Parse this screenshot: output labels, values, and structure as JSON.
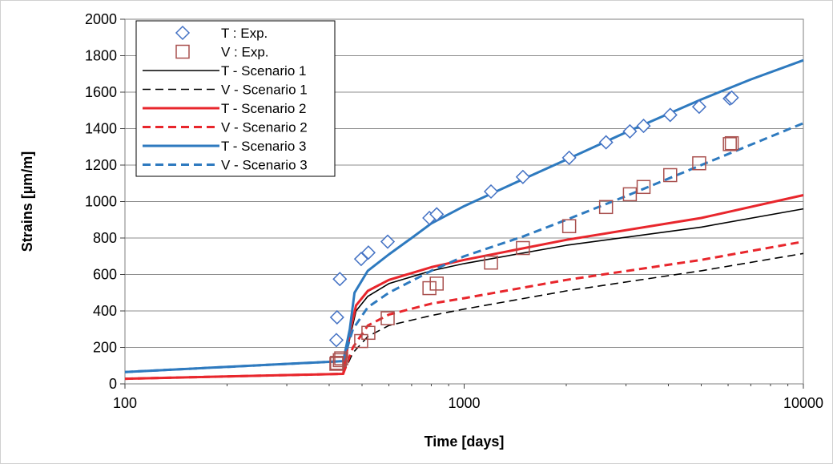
{
  "chart_data": {
    "type": "scatter",
    "xlabel": "Time [days]",
    "ylabel": "Strains [µm/m]",
    "xscale": "log",
    "xlim": [
      100,
      10000
    ],
    "ylim": [
      0,
      2000
    ],
    "xticks": [
      "100",
      "1000",
      "10000"
    ],
    "yticks": [
      "0",
      "200",
      "400",
      "600",
      "800",
      "1000",
      "1200",
      "1400",
      "1600",
      "1800",
      "2000"
    ],
    "grid": "horizontal",
    "legend": "top-left",
    "series": [
      {
        "name": "T : Exp.",
        "kind": "marker",
        "marker": "diamond",
        "color": "#4472C4",
        "points": [
          [
            420,
            240
          ],
          [
            422,
            365
          ],
          [
            430,
            575
          ],
          [
            497,
            685
          ],
          [
            522,
            720
          ],
          [
            595,
            780
          ],
          [
            790,
            910
          ],
          [
            830,
            930
          ],
          [
            1200,
            1055
          ],
          [
            1490,
            1135
          ],
          [
            2040,
            1240
          ],
          [
            2620,
            1325
          ],
          [
            3080,
            1385
          ],
          [
            3380,
            1415
          ],
          [
            4050,
            1475
          ],
          [
            4930,
            1520
          ],
          [
            6070,
            1565
          ],
          [
            6150,
            1570
          ]
        ]
      },
      {
        "name": "V : Exp.",
        "kind": "marker",
        "marker": "square",
        "color": "#A9504E",
        "points": [
          [
            420,
            110
          ],
          [
            422,
            115
          ],
          [
            430,
            130
          ],
          [
            434,
            140
          ],
          [
            497,
            235
          ],
          [
            522,
            280
          ],
          [
            595,
            360
          ],
          [
            790,
            525
          ],
          [
            830,
            550
          ],
          [
            1200,
            665
          ],
          [
            1490,
            745
          ],
          [
            2040,
            865
          ],
          [
            2620,
            970
          ],
          [
            3080,
            1040
          ],
          [
            3380,
            1080
          ],
          [
            4050,
            1145
          ],
          [
            4930,
            1210
          ],
          [
            6070,
            1315
          ],
          [
            6150,
            1320
          ]
        ]
      },
      {
        "name": "T - Scenario 1",
        "kind": "line",
        "dash": "solid",
        "color": "#000000",
        "points": [
          [
            100,
            28
          ],
          [
            440,
            55
          ],
          [
            460,
            250
          ],
          [
            480,
            400
          ],
          [
            520,
            480
          ],
          [
            600,
            550
          ],
          [
            800,
            620
          ],
          [
            1000,
            660
          ],
          [
            2000,
            760
          ],
          [
            5000,
            860
          ],
          [
            10000,
            960
          ]
        ]
      },
      {
        "name": "V - Scenario 1",
        "kind": "line",
        "dash": "dashed",
        "color": "#000000",
        "points": [
          [
            100,
            28
          ],
          [
            440,
            55
          ],
          [
            470,
            170
          ],
          [
            520,
            260
          ],
          [
            600,
            320
          ],
          [
            800,
            375
          ],
          [
            1000,
            410
          ],
          [
            2000,
            510
          ],
          [
            5000,
            620
          ],
          [
            10000,
            715
          ]
        ]
      },
      {
        "name": "T - Scenario 2",
        "kind": "line",
        "dash": "solid",
        "color": "#E8262C",
        "points": [
          [
            100,
            28
          ],
          [
            440,
            55
          ],
          [
            460,
            280
          ],
          [
            480,
            430
          ],
          [
            520,
            510
          ],
          [
            600,
            570
          ],
          [
            800,
            640
          ],
          [
            1000,
            680
          ],
          [
            2000,
            790
          ],
          [
            5000,
            910
          ],
          [
            10000,
            1035
          ]
        ]
      },
      {
        "name": "V - Scenario 2",
        "kind": "line",
        "dash": "dashed",
        "color": "#E8262C",
        "points": [
          [
            100,
            28
          ],
          [
            440,
            55
          ],
          [
            470,
            200
          ],
          [
            520,
            320
          ],
          [
            600,
            380
          ],
          [
            800,
            440
          ],
          [
            1000,
            470
          ],
          [
            2000,
            570
          ],
          [
            5000,
            680
          ],
          [
            10000,
            780
          ]
        ]
      },
      {
        "name": "T - Scenario 3",
        "kind": "line",
        "dash": "solid",
        "color": "#2E7ABF",
        "points": [
          [
            100,
            65
          ],
          [
            440,
            125
          ],
          [
            460,
            300
          ],
          [
            475,
            500
          ],
          [
            520,
            620
          ],
          [
            600,
            710
          ],
          [
            700,
            800
          ],
          [
            800,
            880
          ],
          [
            1000,
            975
          ],
          [
            1500,
            1125
          ],
          [
            2000,
            1230
          ],
          [
            3000,
            1380
          ],
          [
            5000,
            1560
          ],
          [
            7000,
            1670
          ],
          [
            10000,
            1775
          ]
        ]
      },
      {
        "name": "V - Scenario 3",
        "kind": "line",
        "dash": "dashed",
        "color": "#2E7ABF",
        "points": [
          [
            100,
            65
          ],
          [
            440,
            125
          ],
          [
            470,
            300
          ],
          [
            520,
            420
          ],
          [
            600,
            500
          ],
          [
            800,
            620
          ],
          [
            1000,
            700
          ],
          [
            1500,
            810
          ],
          [
            2000,
            900
          ],
          [
            3000,
            1030
          ],
          [
            5000,
            1200
          ],
          [
            10000,
            1430
          ]
        ]
      }
    ]
  }
}
